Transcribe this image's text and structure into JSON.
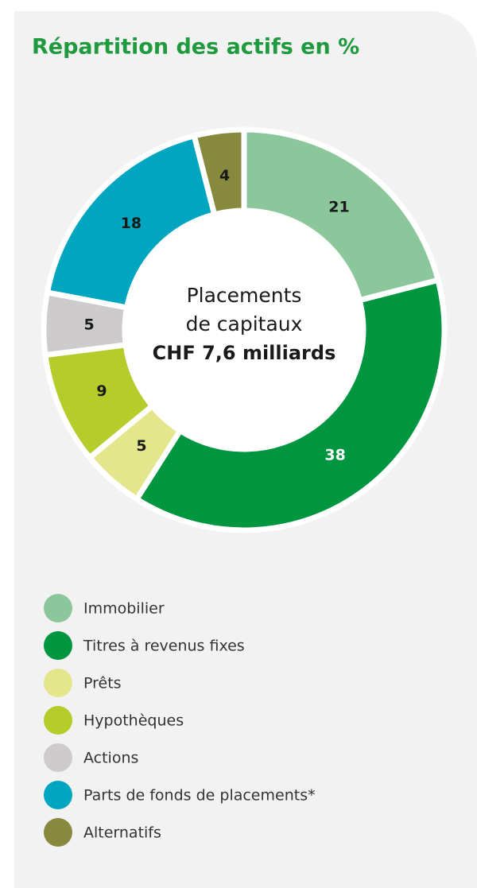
{
  "chart_data": {
    "type": "donut",
    "title": "Répartition des actifs en %",
    "center_label": [
      "Placements",
      "de capitaux",
      "CHF 7,6 milliards"
    ],
    "categories": [
      "Immobilier",
      "Titres à revenus fixes",
      "Prêts",
      "Hypothèques",
      "Actions",
      "Parts de fonds de placements*",
      "Alternatifs"
    ],
    "values": [
      21,
      38,
      5,
      9,
      5,
      18,
      4
    ],
    "colors": [
      "#8cc79c",
      "#00963f",
      "#e3e68a",
      "#b5cc2a",
      "#cdcbcb",
      "#00a5c0",
      "#878a3c"
    ]
  }
}
